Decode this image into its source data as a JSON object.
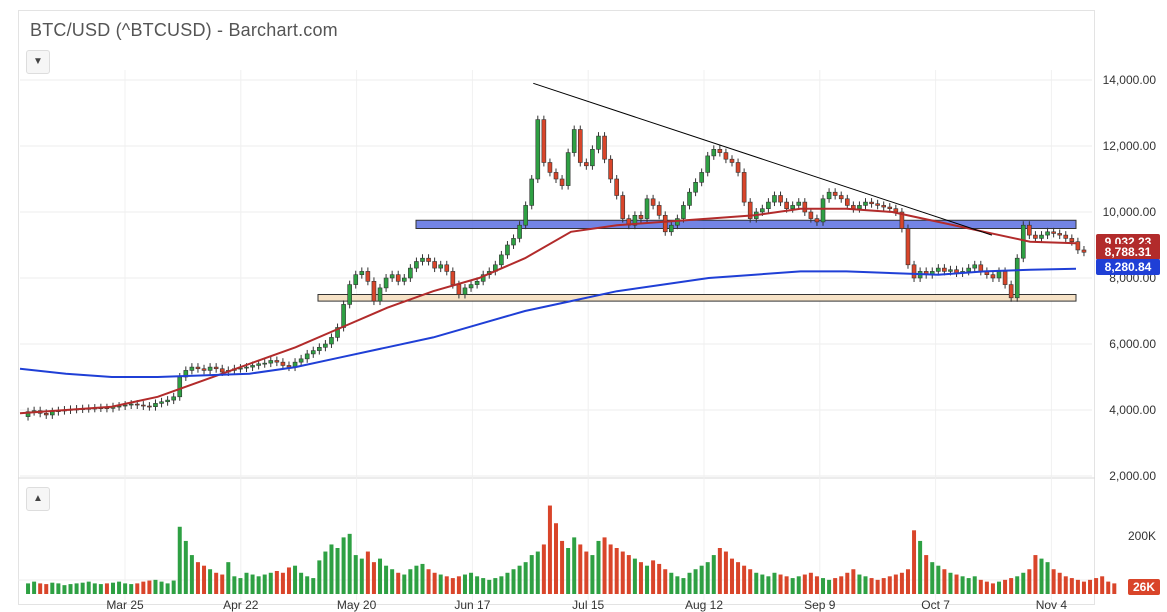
{
  "app": {
    "title": "BTC/USD (^BTCUSD) - Barchart.com",
    "collapse_main_icon": "chevron-down-icon",
    "collapse_volume_icon": "chevron-up-icon"
  },
  "colors": {
    "up": "#2ea043",
    "down": "#d9452a",
    "ma_fast": "#b22b2b",
    "ma_slow": "#1f3fd6",
    "support_band": "#f5dfc0",
    "resistance_band": "#5a6fe0",
    "trendline": "#000000"
  },
  "chart_data": [
    {
      "type": "candlestick",
      "title": "BTC/USD (^BTCUSD) - Barchart.com",
      "y_ticks": [
        "14,000.00",
        "12,000.00",
        "10,000.00",
        "8,000.00",
        "6,000.00",
        "4,000.00",
        "2,000.00"
      ],
      "ylim": [
        2000,
        14000
      ],
      "x_ticks": [
        "Mar 25",
        "Apr 22",
        "May 20",
        "Jun 17",
        "Jul 15",
        "Aug 12",
        "Sep 9",
        "Oct 7",
        "Nov 4"
      ],
      "price_tags": [
        {
          "label": "9,032.23",
          "value": 9032.23,
          "color": "#b22b2b"
        },
        {
          "label": "8,788.31",
          "value": 8788.31,
          "color": "#b22b2b"
        },
        {
          "label": "8,280.84",
          "value": 8280.84,
          "color": "#1f3fd6"
        }
      ],
      "series": [
        {
          "name": "",
          "kind": "ohlc",
          "close": [
            3950,
            3980,
            3900,
            3850,
            3950,
            3980,
            4000,
            4020,
            4030,
            4040,
            4050,
            4060,
            4070,
            4050,
            4100,
            4120,
            4150,
            4180,
            4150,
            4120,
            4100,
            4200,
            4250,
            4300,
            4400,
            5000,
            5200,
            5300,
            5250,
            5200,
            5300,
            5250,
            5150,
            5200,
            5250,
            5270,
            5300,
            5350,
            5400,
            5420,
            5500,
            5450,
            5350,
            5300,
            5450,
            5550,
            5700,
            5800,
            5900,
            6000,
            6200,
            6500,
            7200,
            7800,
            8100,
            8200,
            7900,
            7300,
            7700,
            8000,
            8100,
            7900,
            8000,
            8300,
            8500,
            8600,
            8500,
            8300,
            8400,
            8200,
            7800,
            7500,
            7700,
            7800,
            7900,
            8100,
            8200,
            8400,
            8700,
            9000,
            9200,
            9600,
            10200,
            11000,
            12800,
            11500,
            11200,
            11000,
            10800,
            11800,
            12500,
            11500,
            11400,
            11900,
            12300,
            11600,
            11000,
            10500,
            9800,
            9600,
            9900,
            9800,
            10400,
            10200,
            9900,
            9400,
            9600,
            9800,
            10200,
            10600,
            10900,
            11200,
            11700,
            11900,
            11800,
            11600,
            11500,
            11200,
            10300,
            9800,
            10000,
            10100,
            10300,
            10500,
            10300,
            10100,
            10200,
            10300,
            10000,
            9800,
            9700,
            10400,
            10600,
            10500,
            10400,
            10200,
            10100,
            10200,
            10300,
            10250,
            10200,
            10150,
            10100,
            10000,
            9500,
            8400,
            8000,
            8200,
            8100,
            8200,
            8300,
            8200,
            8250,
            8150,
            8200,
            8300,
            8400,
            8200,
            8100,
            8000,
            8200,
            7800,
            7400,
            8600,
            9600,
            9300,
            9200,
            9300,
            9400,
            9350,
            9300,
            9200,
            9100,
            8850,
            8780
          ],
          "open": [
            3800,
            3950,
            3980,
            3900,
            3850,
            3950,
            3980,
            4000,
            4020,
            4030,
            4040,
            4050,
            4060,
            4070,
            4050,
            4100,
            4120,
            4150,
            4180,
            4150,
            4120,
            4100,
            4200,
            4250,
            4300,
            4400,
            5000,
            5200,
            5300,
            5250,
            5200,
            5300,
            5250,
            5150,
            5200,
            5250,
            5270,
            5300,
            5350,
            5400,
            5420,
            5500,
            5450,
            5350,
            5300,
            5450,
            5550,
            5700,
            5800,
            5900,
            6000,
            6200,
            6500,
            7200,
            7800,
            8100,
            8200,
            7900,
            7300,
            7700,
            8000,
            8100,
            7900,
            8000,
            8300,
            8500,
            8600,
            8500,
            8300,
            8400,
            8200,
            7800,
            7500,
            7700,
            7800,
            7900,
            8100,
            8200,
            8400,
            8700,
            9000,
            9200,
            9600,
            10200,
            11000,
            12800,
            11500,
            11200,
            11000,
            10800,
            11800,
            12500,
            11500,
            11400,
            11900,
            12300,
            11600,
            11000,
            10500,
            9800,
            9600,
            9900,
            9800,
            10400,
            10200,
            9900,
            9400,
            9600,
            9800,
            10200,
            10600,
            10900,
            11200,
            11700,
            11900,
            11800,
            11600,
            11500,
            11200,
            10300,
            9800,
            10000,
            10100,
            10300,
            10500,
            10300,
            10100,
            10200,
            10300,
            10000,
            9800,
            9700,
            10400,
            10600,
            10500,
            10400,
            10200,
            10100,
            10200,
            10300,
            10250,
            10200,
            10150,
            10100,
            10000,
            9500,
            8400,
            8000,
            8200,
            8100,
            8200,
            8300,
            8200,
            8250,
            8150,
            8200,
            8300,
            8400,
            8200,
            8100,
            8000,
            8200,
            7800,
            7400,
            8600,
            9600,
            9300,
            9200,
            9300,
            9400,
            9350,
            9300,
            9200,
            9100,
            8850
          ]
        },
        {
          "name": "",
          "kind": "moving_average_fast",
          "values": [
            3900,
            4000,
            4100,
            4400,
            4900,
            5400,
            5900,
            6500,
            7100,
            7600,
            8000,
            8600,
            9400,
            9600,
            9700,
            9800,
            9900,
            10100,
            10100,
            10000,
            9700,
            9400,
            9100,
            9050
          ]
        },
        {
          "name": "",
          "kind": "moving_average_slow",
          "values": [
            5250,
            5100,
            5000,
            5000,
            5050,
            5100,
            5300,
            5600,
            5900,
            6200,
            6600,
            7000,
            7300,
            7600,
            7800,
            8000,
            8100,
            8200,
            8200,
            8150,
            8100,
            8200,
            8250,
            8280
          ]
        }
      ],
      "annotations": [
        {
          "type": "trendline",
          "from": [
            13900,
            0.115
          ],
          "to": [
            9300,
            0.86
          ]
        },
        {
          "type": "band",
          "low": 9500,
          "high": 9750,
          "label": ""
        },
        {
          "type": "band",
          "low": 7300,
          "high": 7500,
          "label": ""
        }
      ]
    },
    {
      "type": "bar",
      "title": "",
      "y_ticks": [
        "200K"
      ],
      "price_tag": "26K",
      "values": [
        30,
        35,
        30,
        28,
        32,
        30,
        25,
        28,
        30,
        32,
        35,
        30,
        28,
        30,
        32,
        35,
        30,
        28,
        30,
        35,
        38,
        40,
        35,
        30,
        38,
        190,
        150,
        110,
        90,
        80,
        70,
        60,
        55,
        90,
        50,
        45,
        60,
        55,
        50,
        55,
        60,
        65,
        60,
        75,
        80,
        60,
        50,
        45,
        95,
        120,
        140,
        130,
        160,
        170,
        110,
        100,
        120,
        90,
        100,
        80,
        70,
        60,
        55,
        70,
        80,
        85,
        70,
        60,
        55,
        50,
        45,
        50,
        55,
        60,
        50,
        45,
        40,
        45,
        50,
        60,
        70,
        80,
        90,
        110,
        120,
        140,
        250,
        200,
        150,
        130,
        160,
        140,
        120,
        110,
        150,
        160,
        140,
        130,
        120,
        110,
        100,
        90,
        80,
        95,
        85,
        70,
        60,
        50,
        45,
        60,
        70,
        80,
        90,
        110,
        130,
        120,
        100,
        90,
        80,
        70,
        60,
        55,
        50,
        60,
        55,
        50,
        45,
        50,
        55,
        60,
        50,
        45,
        40,
        45,
        50,
        60,
        70,
        55,
        50,
        45,
        40,
        45,
        50,
        55,
        60,
        70,
        180,
        150,
        110,
        90,
        80,
        70,
        60,
        55,
        50,
        45,
        50,
        40,
        35,
        30,
        35,
        40,
        45,
        50,
        60,
        70,
        110,
        100,
        90,
        70,
        60,
        50,
        45,
        40,
        35,
        40,
        45,
        50,
        35,
        30
      ]
    }
  ]
}
